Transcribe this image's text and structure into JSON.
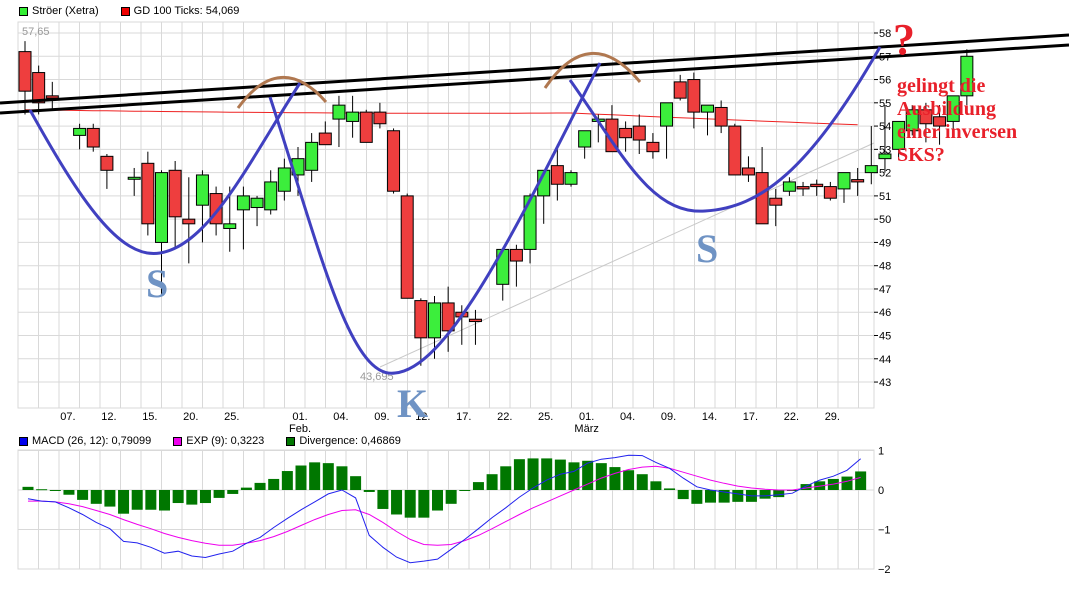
{
  "main_legend": {
    "items": [
      {
        "label": "Ströer (Xetra)",
        "color": "#33ee33"
      },
      {
        "label": "GD 100 Ticks: 54,069",
        "color": "#ee0000"
      }
    ]
  },
  "macd_legend": {
    "items": [
      {
        "label": "MACD (26, 12): 0,79099",
        "color": "#0000ee"
      },
      {
        "label": "EXP (9): 0,3223",
        "color": "#ee00ee"
      },
      {
        "label": "Divergence: 0,46869",
        "color": "#007700"
      }
    ]
  },
  "annotations": {
    "question_mark": "?",
    "text_lines": [
      "gelingt die",
      "Ausbildung",
      "einer inversen",
      "SKS?"
    ],
    "left_shoulder": "S",
    "head": "K",
    "right_shoulder": "S",
    "high_label": "57,65",
    "low_label": "43,695"
  },
  "colors": {
    "up": "#3cee3c",
    "down": "#ee3e3e",
    "grid": "#d9d9d9",
    "trend": "#000000",
    "pattern": "#4040c0",
    "arc": "#b07850",
    "ma": "#ee2222",
    "support": "#c8c8c8"
  },
  "chart_data": [
    {
      "type": "candlestick",
      "title": "Ströer (Xetra)",
      "ylabel": "",
      "ylim": [
        42.3,
        58.5
      ],
      "y_ticks": [
        43,
        44,
        45,
        46,
        47,
        48,
        49,
        50,
        51,
        52,
        53,
        54,
        55,
        56,
        57,
        58
      ],
      "x_tick_labels": [
        {
          "label": "07.",
          "index": 3
        },
        {
          "label": "12.",
          "index": 6
        },
        {
          "label": "15.",
          "index": 9
        },
        {
          "label": "20.",
          "index": 12
        },
        {
          "label": "25.",
          "index": 15
        },
        {
          "label": "01.",
          "sub": "Feb.",
          "index": 20
        },
        {
          "label": "04.",
          "index": 23
        },
        {
          "label": "09.",
          "index": 26
        },
        {
          "label": "12.",
          "index": 29
        },
        {
          "label": "17.",
          "index": 32
        },
        {
          "label": "22.",
          "index": 35
        },
        {
          "label": "25.",
          "index": 38
        },
        {
          "label": "01.",
          "sub": "März",
          "index": 41
        },
        {
          "label": "04.",
          "index": 44
        },
        {
          "label": "09.",
          "index": 47
        },
        {
          "label": "14.",
          "index": 50
        },
        {
          "label": "17.",
          "index": 53
        },
        {
          "label": "22.",
          "index": 56
        },
        {
          "label": "29.",
          "index": 59
        }
      ],
      "ohlc": [
        [
          57.2,
          57.65,
          54.5,
          55.5
        ],
        [
          56.3,
          56.6,
          54.5,
          55.0
        ],
        [
          55.3,
          55.9,
          54.7,
          55.2
        ],
        [
          null,
          null,
          null,
          null
        ],
        [
          53.6,
          54.1,
          53.0,
          53.9
        ],
        [
          53.9,
          54.1,
          52.9,
          53.1
        ],
        [
          52.7,
          52.8,
          51.3,
          52.1
        ],
        [
          null,
          null,
          null,
          null
        ],
        [
          51.8,
          52.2,
          51.0,
          51.8
        ],
        [
          52.4,
          52.9,
          49.3,
          49.8
        ],
        [
          49.0,
          52.1,
          46.7,
          52.0
        ],
        [
          52.1,
          52.5,
          48.8,
          50.1
        ],
        [
          50.0,
          51.8,
          48.1,
          49.8
        ],
        [
          50.6,
          52.1,
          49.0,
          51.9
        ],
        [
          51.1,
          51.4,
          49.3,
          49.8
        ],
        [
          49.6,
          51.4,
          48.6,
          49.8
        ],
        [
          50.4,
          51.4,
          48.7,
          51.0
        ],
        [
          50.5,
          51.0,
          49.7,
          50.9
        ],
        [
          50.4,
          52.1,
          50.2,
          51.6
        ],
        [
          51.2,
          52.6,
          50.8,
          52.2
        ],
        [
          51.9,
          53.1,
          51.0,
          52.6
        ],
        [
          52.1,
          53.7,
          51.6,
          53.3
        ],
        [
          53.7,
          54.2,
          53.2,
          53.2
        ],
        [
          54.3,
          55.3,
          53.1,
          54.9
        ],
        [
          54.2,
          55.3,
          53.5,
          54.6
        ],
        [
          54.6,
          54.7,
          53.4,
          53.3
        ],
        [
          54.6,
          55.0,
          53.9,
          54.1
        ],
        [
          53.8,
          53.9,
          51.1,
          51.2
        ],
        [
          51.0,
          51.1,
          46.6,
          46.6
        ],
        [
          46.5,
          46.6,
          43.7,
          44.9
        ],
        [
          44.9,
          46.7,
          44.0,
          46.4
        ],
        [
          46.4,
          47.1,
          44.3,
          45.2
        ],
        [
          46.0,
          46.3,
          44.6,
          45.8
        ],
        [
          45.7,
          46.1,
          44.6,
          45.6
        ],
        [
          null,
          null,
          null,
          null
        ],
        [
          47.2,
          48.2,
          46.5,
          48.7
        ],
        [
          48.7,
          48.9,
          47.1,
          48.2
        ],
        [
          48.7,
          51.1,
          48.1,
          51.0
        ],
        [
          51.0,
          51.5,
          49.8,
          52.1
        ],
        [
          52.3,
          53.2,
          50.8,
          51.5
        ],
        [
          51.5,
          52.1,
          51.4,
          52.0
        ],
        [
          53.1,
          53.8,
          52.6,
          53.8
        ],
        [
          54.2,
          54.5,
          53.3,
          54.3
        ],
        [
          54.3,
          54.9,
          52.9,
          52.9
        ],
        [
          53.9,
          54.2,
          52.9,
          53.5
        ],
        [
          54.0,
          54.5,
          52.8,
          53.4
        ],
        [
          53.3,
          53.7,
          52.6,
          52.9
        ],
        [
          54.0,
          54.7,
          52.6,
          55.0
        ],
        [
          55.9,
          56.2,
          55.1,
          55.2
        ],
        [
          56.0,
          56.3,
          53.9,
          54.6
        ],
        [
          54.6,
          54.9,
          53.6,
          54.9
        ],
        [
          54.8,
          55.1,
          53.7,
          54.0
        ],
        [
          54.0,
          54.1,
          51.9,
          51.9
        ],
        [
          52.2,
          52.7,
          51.6,
          51.9
        ],
        [
          52.0,
          53.1,
          49.8,
          49.8
        ],
        [
          50.9,
          51.3,
          49.7,
          50.6
        ],
        [
          51.2,
          51.8,
          51.0,
          51.6
        ],
        [
          51.4,
          51.6,
          51.0,
          51.3
        ],
        [
          51.5,
          51.7,
          51.0,
          51.4
        ],
        [
          51.4,
          51.6,
          50.8,
          50.9
        ],
        [
          51.3,
          51.9,
          50.7,
          52.0
        ],
        [
          51.7,
          52.2,
          51.0,
          51.6
        ],
        [
          52.0,
          54.0,
          51.5,
          52.3
        ],
        [
          52.6,
          54.9,
          52.0,
          52.8
        ],
        [
          53.0,
          53.5,
          52.6,
          54.2
        ],
        [
          53.8,
          54.9,
          53.6,
          54.7
        ],
        [
          54.7,
          55.0,
          53.3,
          54.1
        ],
        [
          54.4,
          54.9,
          53.2,
          54.0
        ],
        [
          54.2,
          55.3,
          53.6,
          55.3
        ],
        [
          55.3,
          57.3,
          54.9,
          57.0
        ]
      ],
      "moving_average_label": "GD 100 Ticks",
      "moving_average_last": 54.069
    },
    {
      "type": "bar+line",
      "title": "MACD",
      "ylim": [
        -2,
        1
      ],
      "y_ticks": [
        1,
        0,
        -1,
        -2
      ],
      "series": [
        {
          "name": "MACD (26, 12)",
          "last": 0.79099,
          "values": [
            -0.22,
            -0.28,
            -0.3,
            -0.45,
            -0.62,
            -0.82,
            -0.98,
            -1.3,
            -1.34,
            -1.45,
            -1.6,
            -1.55,
            -1.67,
            -1.71,
            -1.62,
            -1.55,
            -1.35,
            -1.2,
            -0.95,
            -0.72,
            -0.5,
            -0.3,
            -0.1,
            0.0,
            -0.2,
            -1.15,
            -1.45,
            -1.7,
            -1.84,
            -1.8,
            -1.75,
            -1.5,
            -1.25,
            -0.98,
            -0.7,
            -0.45,
            -0.18,
            0.05,
            0.25,
            0.4,
            0.47,
            0.68,
            0.78,
            0.82,
            0.88,
            0.87,
            0.7,
            0.55,
            0.3,
            0.08,
            0.0,
            -0.05,
            -0.1,
            -0.15,
            -0.15,
            -0.12,
            -0.08,
            0.1,
            0.25,
            0.35,
            0.5,
            0.79
          ]
        },
        {
          "name": "EXP (9)",
          "last": 0.3223,
          "values": [
            -0.28,
            -0.28,
            -0.3,
            -0.35,
            -0.42,
            -0.52,
            -0.62,
            -0.75,
            -0.87,
            -0.98,
            -1.1,
            -1.2,
            -1.28,
            -1.35,
            -1.4,
            -1.4,
            -1.35,
            -1.28,
            -1.18,
            -1.05,
            -0.9,
            -0.75,
            -0.62,
            -0.52,
            -0.5,
            -0.62,
            -0.82,
            -1.05,
            -1.25,
            -1.38,
            -1.4,
            -1.38,
            -1.28,
            -1.15,
            -0.98,
            -0.8,
            -0.62,
            -0.45,
            -0.3,
            -0.15,
            0.0,
            0.15,
            0.3,
            0.42,
            0.52,
            0.58,
            0.6,
            0.55,
            0.45,
            0.35,
            0.25,
            0.17,
            0.1,
            0.05,
            0.02,
            0.0,
            0.0,
            0.05,
            0.1,
            0.15,
            0.22,
            0.32
          ]
        },
        {
          "name": "Divergence",
          "last": 0.46869,
          "values": [
            0.08,
            0.02,
            -0.02,
            -0.12,
            -0.25,
            -0.35,
            -0.42,
            -0.6,
            -0.5,
            -0.5,
            -0.52,
            -0.33,
            -0.37,
            -0.33,
            -0.2,
            -0.1,
            0.06,
            0.18,
            0.28,
            0.48,
            0.62,
            0.7,
            0.68,
            0.6,
            0.35,
            -0.05,
            -0.48,
            -0.62,
            -0.7,
            -0.7,
            -0.52,
            -0.35,
            -0.02,
            0.2,
            0.4,
            0.6,
            0.78,
            0.8,
            0.8,
            0.77,
            0.7,
            0.74,
            0.68,
            0.58,
            0.5,
            0.4,
            0.22,
            0.04,
            -0.23,
            -0.35,
            -0.32,
            -0.32,
            -0.3,
            -0.3,
            -0.22,
            -0.18,
            0.0,
            0.15,
            0.22,
            0.28,
            0.34,
            0.47
          ]
        }
      ]
    }
  ]
}
